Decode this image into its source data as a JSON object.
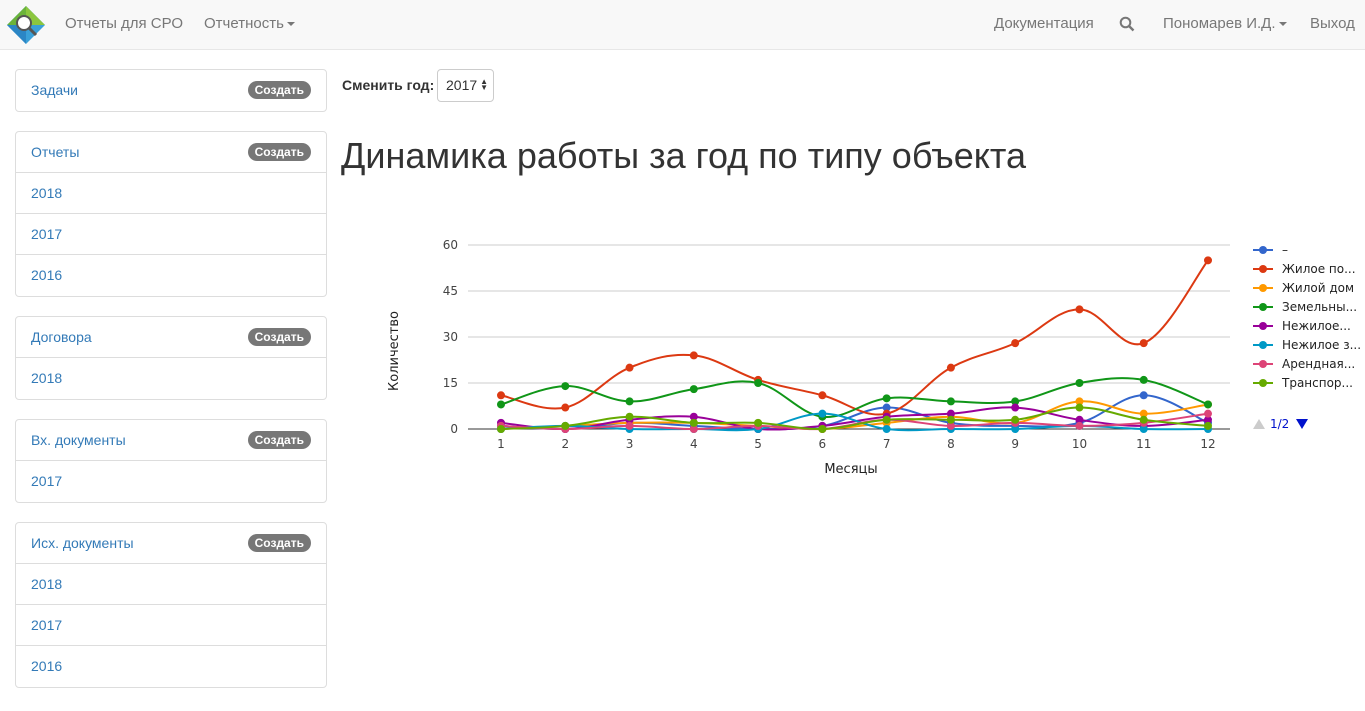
{
  "navbar": {
    "items": [
      "Отчеты для СРО",
      "Отчетность"
    ],
    "right_items": [
      "Документация",
      "Пономарев И.Д.",
      "Выход"
    ]
  },
  "sidebar": {
    "create_label": "Создать",
    "panels": [
      {
        "title": "Задачи",
        "items": []
      },
      {
        "title": "Отчеты",
        "items": [
          "2018",
          "2017",
          "2016"
        ]
      },
      {
        "title": "Договора",
        "items": [
          "2018"
        ]
      },
      {
        "title": "Вх. документы",
        "items": [
          "2017"
        ]
      },
      {
        "title": "Исх. документы",
        "items": [
          "2018",
          "2017",
          "2016"
        ]
      }
    ]
  },
  "main": {
    "year_label": "Сменить год:",
    "year_value": "2017",
    "title": "Динамика работы за год по типу объекта"
  },
  "legend_pager": "1/2",
  "chart_data": {
    "type": "line",
    "xlabel": "Месяцы",
    "ylabel": "Количество",
    "x": [
      1,
      2,
      3,
      4,
      5,
      6,
      7,
      8,
      9,
      10,
      11,
      12
    ],
    "ylim": [
      0,
      60
    ],
    "yticks": [
      0,
      15,
      30,
      45,
      60
    ],
    "grid": true,
    "legend": "right",
    "series": [
      {
        "name": "–",
        "color": "#3366cc",
        "values": [
          1,
          0,
          2,
          1,
          0,
          1,
          7,
          2,
          1,
          2,
          11,
          2
        ]
      },
      {
        "name": "Жилое по...",
        "color": "#dc3912",
        "values": [
          11,
          7,
          20,
          24,
          16,
          11,
          5,
          20,
          28,
          39,
          28,
          55
        ]
      },
      {
        "name": "Жилой дом",
        "color": "#ff9900",
        "values": [
          0,
          1,
          2,
          2,
          1,
          0,
          2,
          4,
          2,
          9,
          5,
          8
        ]
      },
      {
        "name": "Земельны...",
        "color": "#109618",
        "values": [
          8,
          14,
          9,
          13,
          15,
          4,
          10,
          9,
          9,
          15,
          16,
          8
        ]
      },
      {
        "name": "Нежилое...",
        "color": "#990099",
        "values": [
          2,
          0,
          3,
          4,
          0,
          1,
          4,
          5,
          7,
          3,
          1,
          3
        ]
      },
      {
        "name": "Нежилое з...",
        "color": "#0099c6",
        "values": [
          0,
          1,
          0,
          0,
          0,
          5,
          0,
          0,
          0,
          1,
          0,
          0
        ]
      },
      {
        "name": "Арендная...",
        "color": "#dd4477",
        "values": [
          1,
          0,
          1,
          0,
          1,
          0,
          3,
          1,
          2,
          1,
          2,
          5
        ]
      },
      {
        "name": "Транспор...",
        "color": "#66aa00",
        "values": [
          0,
          1,
          4,
          2,
          2,
          0,
          3,
          3,
          3,
          7,
          3,
          1
        ]
      }
    ]
  }
}
